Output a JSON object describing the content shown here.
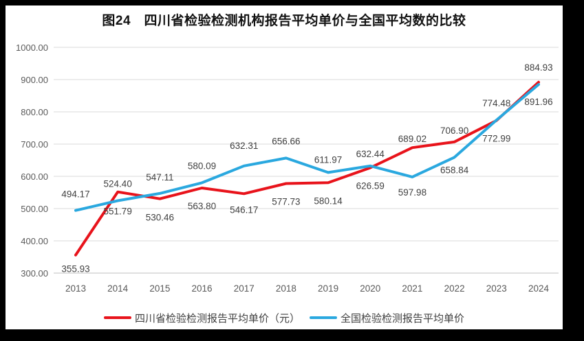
{
  "figure": {
    "title": "图24　四川省检验检测机构报告平均单价与全国平均数的比较",
    "frame_color": "#000000",
    "background_color": "#ffffff"
  },
  "chart_data": {
    "type": "line",
    "title": "图24　四川省检验检测机构报告平均单价与全国平均数的比较",
    "x": [
      "2013",
      "2014",
      "2015",
      "2016",
      "2017",
      "2018",
      "2019",
      "2020",
      "2021",
      "2022",
      "2023",
      "2024"
    ],
    "series": [
      {
        "name": "四川省检验检测报告平均单价（元）",
        "color": "#e8131b",
        "values": [
          355.93,
          551.79,
          530.46,
          563.8,
          546.17,
          577.73,
          580.14,
          626.59,
          689.02,
          706.9,
          772.99,
          891.96
        ],
        "label_dy": [
          25,
          33,
          32,
          31,
          28,
          31,
          31,
          31,
          -8,
          -12,
          31,
          33
        ]
      },
      {
        "name": "全国检验检测报告平均单价",
        "color": "#2aa8df",
        "values": [
          494.17,
          524.4,
          547.11,
          580.09,
          632.31,
          656.66,
          611.97,
          632.44,
          597.98,
          658.84,
          774.48,
          884.93
        ],
        "label_dy": [
          -19,
          -20,
          -19,
          -20,
          -25,
          -20,
          -14,
          -13,
          27,
          23,
          -20,
          -20
        ]
      }
    ],
    "ylim": [
      300,
      1000
    ],
    "yticks": [
      300,
      400,
      500,
      600,
      700,
      800,
      900,
      1000
    ],
    "ytick_format": "2-decimals",
    "xlabel": "",
    "ylabel": "",
    "grid": true,
    "legend_position": "bottom",
    "data_labels": true,
    "colors": {
      "grid": "#d9d9d9",
      "axis_line": "#bfbfbf",
      "tick_label": "#595959",
      "data_label": "#404040",
      "title": "#111111"
    }
  }
}
